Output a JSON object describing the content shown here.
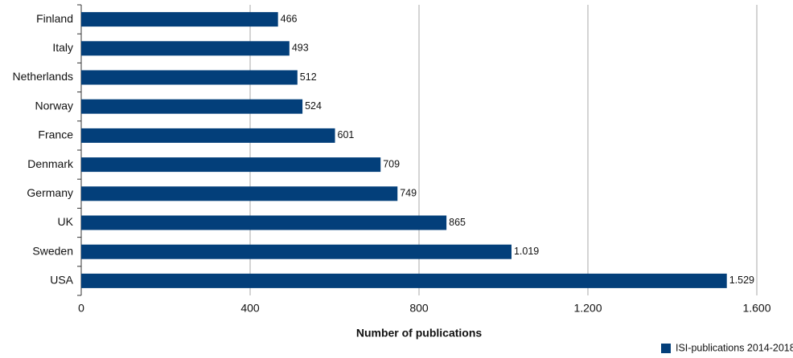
{
  "chart_data": {
    "type": "barh",
    "categories": [
      "Finland",
      "Italy",
      "Netherlands",
      "Norway",
      "France",
      "Denmark",
      "Germany",
      "UK",
      "Sweden",
      "USA"
    ],
    "series": [
      {
        "name": "ISI-publications 2014-2018",
        "color": "#033f7a",
        "values": [
          466,
          493,
          512,
          524,
          601,
          709,
          749,
          865,
          1019,
          1529
        ],
        "value_labels": [
          "466",
          "493",
          "512",
          "524",
          "601",
          "709",
          "749",
          "865",
          "1.019",
          "1.529"
        ]
      }
    ],
    "x_label": "Number of publications",
    "xlim": [
      0,
      1600
    ],
    "xticks": [
      0,
      400,
      800,
      {
        "value": 1200,
        "label": "1.200"
      },
      {
        "value": 1600,
        "label": "1.600"
      }
    ],
    "grid": true,
    "legend": "bottom-right"
  }
}
